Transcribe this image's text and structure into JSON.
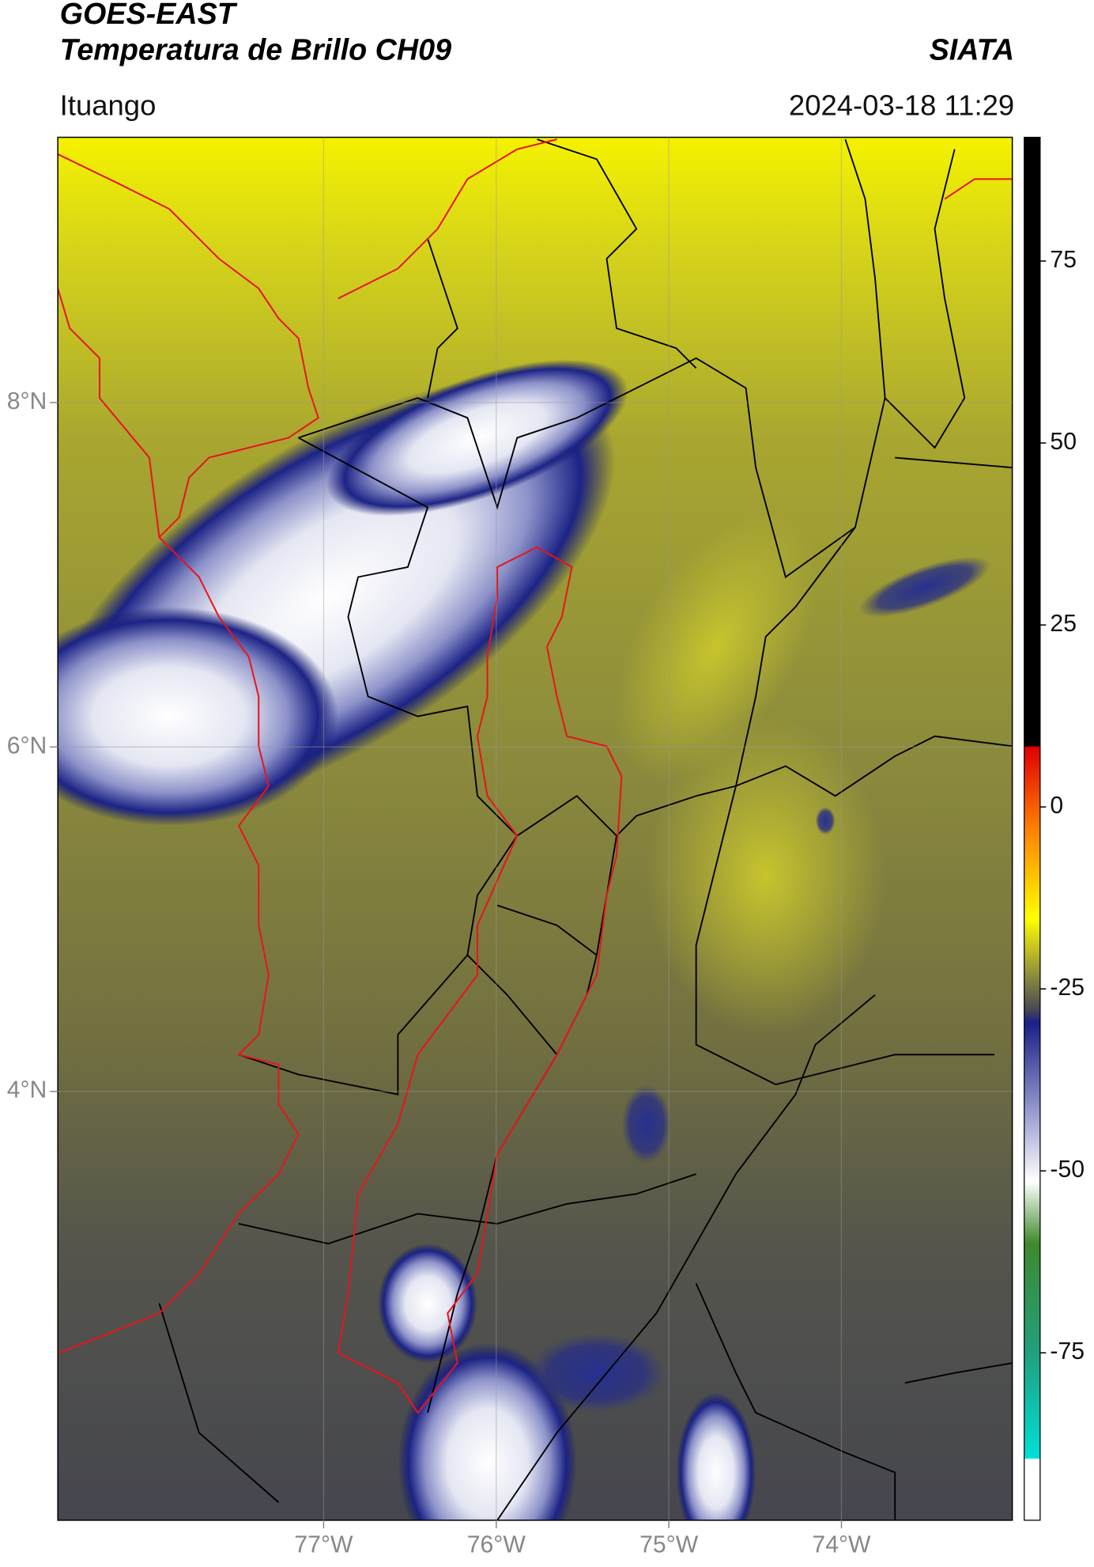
{
  "chart_data": {
    "type": "map",
    "title": "GOES-EAST",
    "subtitle": "Temperatura de Brillo CH09",
    "source": "SIATA",
    "location": "Ituango",
    "timestamp": "2024-03-18 11:29",
    "xlim": [
      -78.54,
      -73.01
    ],
    "ylim": [
      1.51,
      9.54
    ],
    "xticks": [
      {
        "value": -77,
        "label": "77°W"
      },
      {
        "value": -76,
        "label": "76°W"
      },
      {
        "value": -75,
        "label": "75°W"
      },
      {
        "value": -74,
        "label": "74°W"
      }
    ],
    "yticks": [
      {
        "value": 4,
        "label": "4°N"
      },
      {
        "value": 6,
        "label": "6°N"
      },
      {
        "value": 8,
        "label": "8°N"
      }
    ],
    "colorbar": {
      "lim": [
        -98,
        92
      ],
      "ticks": [
        -75,
        -50,
        -25,
        0,
        25,
        50,
        75
      ]
    },
    "grid": true
  }
}
